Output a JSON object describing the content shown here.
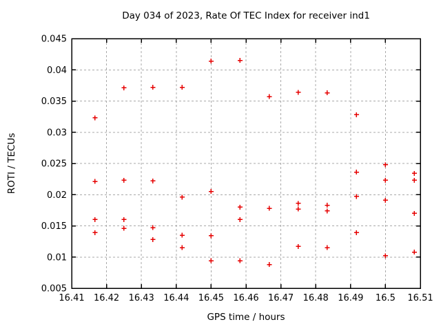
{
  "page": {
    "background": "#ffffff",
    "text_color": "#000000"
  },
  "chart_data": {
    "type": "scatter",
    "title": "Day 034 of 2023, Rate Of TEC Index for receiver ind1",
    "xlabel": "GPS time / hours",
    "ylabel": "ROTI / TECUs",
    "xlim": [
      16.41,
      16.51
    ],
    "ylim": [
      0.005,
      0.045
    ],
    "grid": true,
    "legend_position": "none",
    "marker": "plus",
    "marker_color": "#e60000",
    "grid_color": "#a8a8a8",
    "axis_color": "#000000",
    "xticks": [
      {
        "v": 16.41,
        "label": "16.41"
      },
      {
        "v": 16.42,
        "label": "16.42"
      },
      {
        "v": 16.43,
        "label": "16.43"
      },
      {
        "v": 16.44,
        "label": "16.44"
      },
      {
        "v": 16.45,
        "label": "16.45"
      },
      {
        "v": 16.46,
        "label": "16.46"
      },
      {
        "v": 16.47,
        "label": "16.47"
      },
      {
        "v": 16.48,
        "label": "16.48"
      },
      {
        "v": 16.49,
        "label": "16.49"
      },
      {
        "v": 16.5,
        "label": "16.5"
      },
      {
        "v": 16.51,
        "label": "16.51"
      }
    ],
    "yticks": [
      {
        "v": 0.005,
        "label": "0.005"
      },
      {
        "v": 0.01,
        "label": "0.01"
      },
      {
        "v": 0.015,
        "label": "0.015"
      },
      {
        "v": 0.02,
        "label": "0.02"
      },
      {
        "v": 0.025,
        "label": "0.025"
      },
      {
        "v": 0.03,
        "label": "0.03"
      },
      {
        "v": 0.035,
        "label": "0.035"
      },
      {
        "v": 0.04,
        "label": "0.04"
      },
      {
        "v": 0.045,
        "label": "0.045"
      }
    ],
    "points": [
      [
        16.4167,
        0.0323
      ],
      [
        16.4167,
        0.0221
      ],
      [
        16.4167,
        0.016
      ],
      [
        16.4167,
        0.0139
      ],
      [
        16.425,
        0.0371
      ],
      [
        16.425,
        0.0223
      ],
      [
        16.425,
        0.016
      ],
      [
        16.425,
        0.0146
      ],
      [
        16.4333,
        0.0372
      ],
      [
        16.4333,
        0.0222
      ],
      [
        16.4333,
        0.0147
      ],
      [
        16.4333,
        0.0128
      ],
      [
        16.4417,
        0.0372
      ],
      [
        16.4417,
        0.0196
      ],
      [
        16.4417,
        0.0135
      ],
      [
        16.4417,
        0.0115
      ],
      [
        16.45,
        0.0414
      ],
      [
        16.45,
        0.0205
      ],
      [
        16.45,
        0.0134
      ],
      [
        16.45,
        0.0094
      ],
      [
        16.4583,
        0.0415
      ],
      [
        16.4583,
        0.018
      ],
      [
        16.4583,
        0.016
      ],
      [
        16.4583,
        0.0094
      ],
      [
        16.4667,
        0.0357
      ],
      [
        16.4667,
        0.0178
      ],
      [
        16.4667,
        0.0088
      ],
      [
        16.475,
        0.0364
      ],
      [
        16.475,
        0.0186
      ],
      [
        16.475,
        0.0177
      ],
      [
        16.475,
        0.0117
      ],
      [
        16.4833,
        0.0363
      ],
      [
        16.4833,
        0.0183
      ],
      [
        16.4833,
        0.0174
      ],
      [
        16.4833,
        0.0115
      ],
      [
        16.4917,
        0.0328
      ],
      [
        16.4917,
        0.0236
      ],
      [
        16.4917,
        0.0197
      ],
      [
        16.4917,
        0.0139
      ],
      [
        16.5,
        0.0248
      ],
      [
        16.5,
        0.0223
      ],
      [
        16.5,
        0.0191
      ],
      [
        16.5,
        0.0102
      ],
      [
        16.5083,
        0.0234
      ],
      [
        16.5083,
        0.0223
      ],
      [
        16.5083,
        0.017
      ],
      [
        16.5083,
        0.0108
      ]
    ]
  }
}
